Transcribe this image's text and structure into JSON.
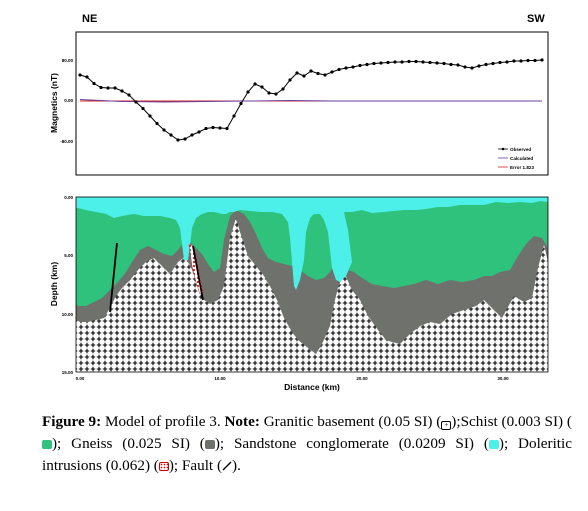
{
  "figure": {
    "corner_left": "NE",
    "corner_right": "SW"
  },
  "top_panel": {
    "ylabel": "Magnetics (nT)",
    "yticks": [
      "80.00",
      "0.00",
      "-80.00"
    ],
    "legend": [
      "Observed",
      "Calculated",
      "Error 1.823"
    ],
    "colors": {
      "observed": "#000000",
      "calculated": "#6b3fa0",
      "error": "#d62020"
    }
  },
  "bottom_panel": {
    "ylabel": "Depth (km)",
    "yticks": [
      "0.00",
      "5.00",
      "10.00",
      "15.00"
    ],
    "xlabel": "Distance (km)",
    "xticks": [
      "0.00",
      "10.00",
      "20.00",
      "30.00"
    ],
    "colors": {
      "sandstone": "#4cf0e8",
      "schist": "#2fc27d",
      "gneiss": "#6f716c",
      "granite": "#ffffff",
      "dolerite": "#d01818",
      "fault": "#000000"
    }
  },
  "chart_data": {
    "type": "line",
    "xlabel": "Distance (km)",
    "ylabel": "Magnetics (nT)",
    "ylim": [
      -100,
      110
    ],
    "xlim": [
      0,
      33
    ],
    "series": [
      {
        "name": "Observed",
        "x": [
          0,
          0.5,
          1,
          1.5,
          2,
          2.5,
          3,
          3.5,
          4,
          4.5,
          5,
          5.5,
          6,
          6.5,
          7,
          7.5,
          8,
          8.5,
          9,
          9.5,
          10,
          10.5,
          11,
          11.5,
          12,
          12.5,
          13,
          13.5,
          14,
          14.5,
          15,
          15.5,
          16,
          16.5,
          17,
          17.5,
          18,
          18.5,
          19,
          19.5,
          20,
          20.5,
          21,
          21.5,
          22,
          22.5,
          23,
          23.5,
          24,
          24.5,
          25,
          25.5,
          26,
          26.5,
          27,
          27.5,
          28,
          28.5,
          29,
          29.5,
          30,
          30.5,
          31,
          31.5,
          32,
          32.5,
          33
        ],
        "values": [
          52,
          48,
          35,
          27,
          26,
          26,
          20,
          12,
          -2,
          -15,
          -30,
          -45,
          -58,
          -68,
          -78,
          -76,
          -68,
          -62,
          -55,
          -53,
          -54,
          -55,
          -30,
          -5,
          18,
          34,
          28,
          16,
          14,
          24,
          42,
          56,
          50,
          60,
          55,
          52,
          58,
          63,
          66,
          68,
          71,
          73,
          75,
          76,
          77,
          78,
          78,
          79,
          79,
          78,
          77,
          76,
          75,
          73,
          72,
          68,
          66,
          70,
          73,
          75,
          77,
          78,
          80,
          80,
          81,
          81,
          82
        ]
      },
      {
        "name": "Calculated",
        "x": [
          0,
          3,
          6,
          9,
          12,
          15,
          18,
          21,
          24,
          27,
          30,
          33
        ],
        "values": [
          3,
          -1,
          -2,
          -1,
          0,
          1,
          0,
          0,
          0,
          0,
          0,
          0
        ]
      },
      {
        "name": "Error 1.823",
        "x": [
          0,
          33
        ],
        "values": [
          0,
          0
        ]
      }
    ]
  },
  "caption": {
    "label": "Figure 9:",
    "text1": "Model of profile 3.",
    "note_label": "Note:",
    "granite_text": "Granitic basement (0.05 SI) (",
    "schist_text": ");Schist (0.003 SI) (",
    "gneiss_text": "); Gneiss (0.025 SI) (",
    "sand_text": "); Sandstone conglomerate (0.0209 SI) (",
    "dol_text": "); Doleritic intrusions (0.062) (",
    "fault_text": "); Fault (",
    "end_text": ")."
  }
}
